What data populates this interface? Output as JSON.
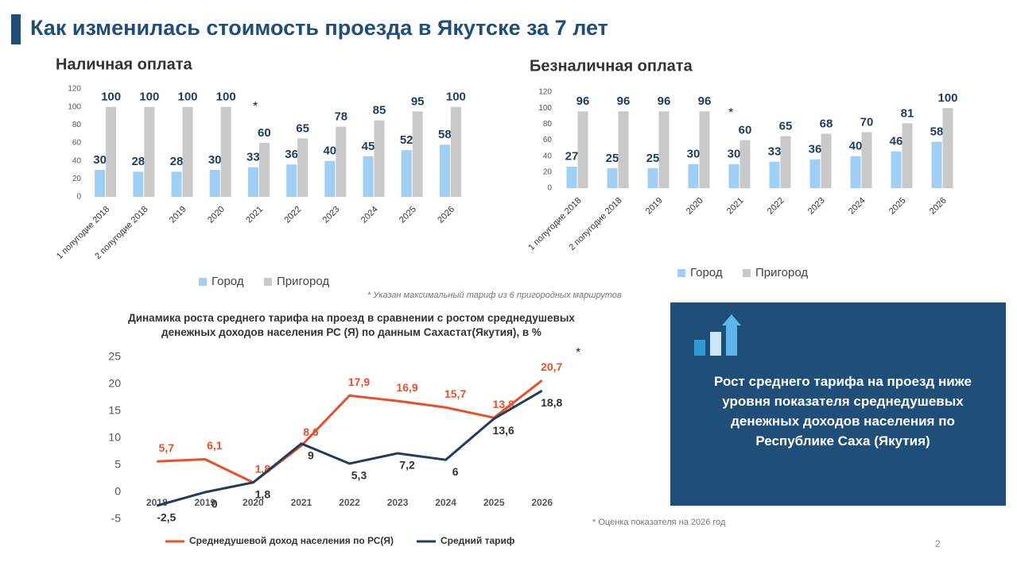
{
  "title": "Как изменилась стоимость проезда в Якутске за 7 лет",
  "chart_data": [
    {
      "type": "bar",
      "title": "Наличная оплата",
      "annotation": "*",
      "categories": [
        "1 полугодие 2018",
        "2 полугодие 2018",
        "2019",
        "2020",
        "2021",
        "2022",
        "2023",
        "2024",
        "2025",
        "2026"
      ],
      "series": [
        {
          "name": "Город",
          "color": "#9fcff5",
          "values": [
            30,
            28,
            28,
            30,
            33,
            36,
            40,
            45,
            52,
            58
          ]
        },
        {
          "name": "Пригород",
          "color": "#c9c9c9",
          "values": [
            100,
            100,
            100,
            100,
            60,
            65,
            78,
            85,
            95,
            100
          ]
        }
      ],
      "ylim": [
        0,
        120
      ],
      "yticks": [
        0,
        20,
        40,
        60,
        80,
        100,
        120
      ],
      "grid": false
    },
    {
      "type": "bar",
      "title": "Безналичная оплата",
      "annotation": "*",
      "categories": [
        "1 полугодие 2018",
        "2 полугодие 2018",
        "2019",
        "2020",
        "2021",
        "2022",
        "2023",
        "2024",
        "2025",
        "2026"
      ],
      "series": [
        {
          "name": "Город",
          "color": "#9fcff5",
          "values": [
            27,
            25,
            25,
            30,
            30,
            33,
            36,
            40,
            46,
            58
          ]
        },
        {
          "name": "Пригород",
          "color": "#c9c9c9",
          "values": [
            96,
            96,
            96,
            96,
            60,
            65,
            68,
            70,
            81,
            100
          ]
        }
      ],
      "ylim": [
        0,
        120
      ],
      "yticks": [
        0,
        20,
        40,
        60,
        80,
        100,
        120
      ],
      "grid": false
    },
    {
      "type": "line",
      "title": "Динамика роста среднего тарифа на проезд в сравнении с ростом среднедушевых денежных доходов населения РС (Я) по данным Сахастат(Якутия), в %",
      "annotation": "*",
      "categories": [
        "2018",
        "2019",
        "2020",
        "2021",
        "2022",
        "2023",
        "2024",
        "2025",
        "2026"
      ],
      "series": [
        {
          "name": "Среднедушевой доход населения по РС(Я)",
          "color": "#e8502a",
          "values": [
            5.7,
            6.1,
            1.8,
            8.6,
            17.9,
            16.9,
            15.7,
            13.8,
            20.7
          ],
          "value_labels": [
            "5,7",
            "6,1",
            "1,8",
            "8,6",
            "17,9",
            "16,9",
            "15,7",
            "13,8",
            "20,7"
          ]
        },
        {
          "name": "Средний тариф",
          "color": "#1f3d5c",
          "values": [
            -2.5,
            0,
            1.8,
            9,
            5.3,
            7.2,
            6,
            13.6,
            18.8
          ],
          "value_labels": [
            "-2,5",
            "0",
            "1,8",
            "9",
            "5,3",
            "7,2",
            "6",
            "13,6",
            "18,8"
          ]
        }
      ],
      "ylim": [
        -5,
        25
      ],
      "yticks": [
        -5,
        0,
        5,
        10,
        15,
        20,
        25
      ],
      "grid": false
    }
  ],
  "notes": [
    "* Указан максимальный тариф из 6 пригородных маршрутов",
    "* Оценка показателя на 2026 год"
  ],
  "info_box": "Рост среднего тарифа на проезд ниже уровня показателя среднедушевых денежных доходов населения по Республике Саха (Якутия)",
  "page_number": "2"
}
